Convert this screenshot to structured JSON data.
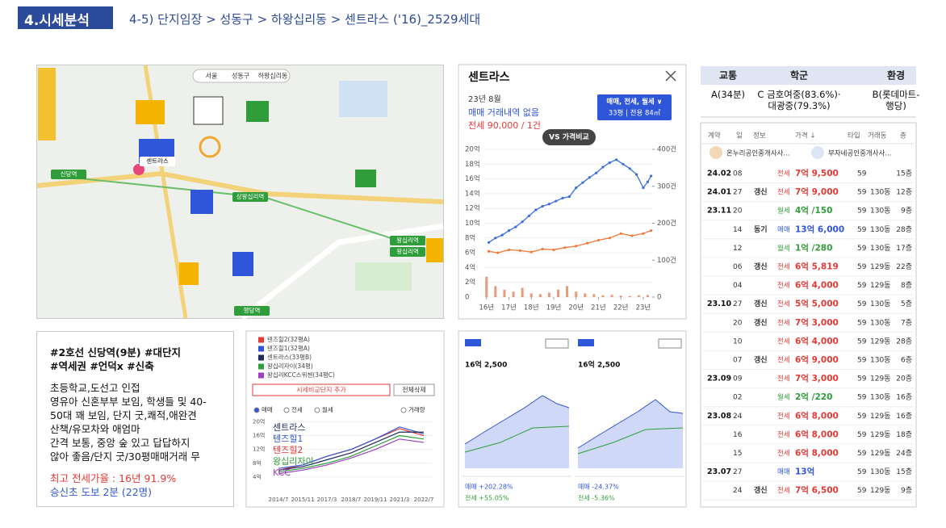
{
  "header": {
    "section": "4.시세분석",
    "breadcrumb": "4-5) 단지임장 > 성동구 > 하왕십리동 > 센트라스 ('16)_2529세대"
  },
  "map": {
    "filters": [
      "서울",
      "성동구",
      "하왕십리동"
    ],
    "labels": [
      "센트라스",
      "신당역",
      "상왕십리역",
      "왕십리역",
      "왕십리역",
      "행당역"
    ]
  },
  "price_panel": {
    "title": "센트라스",
    "month": "23년 8월",
    "sale_status": "매매 거래내역 없음",
    "jeonse_status": "전세 90,000 / 1건",
    "filter": "매매, 전세, 월세 ∨",
    "size": "33평 | 전용 84㎡",
    "compare": "VS 가격비교",
    "chart": {
      "type": "line",
      "sale": {
        "color": "#3b6fe0",
        "x": [
          16.1,
          16.4,
          16.7,
          17.0,
          17.3,
          17.6,
          17.9,
          18.2,
          18.5,
          18.8,
          19.1,
          19.4,
          19.7,
          20.0,
          20.3,
          20.6,
          20.9,
          21.2,
          21.5,
          21.8,
          22.1,
          22.4,
          22.7,
          23.0,
          23.2,
          23.35
        ],
        "values": [
          7.4,
          8.0,
          8.4,
          9.0,
          9.5,
          10.2,
          11.0,
          11.8,
          12.3,
          12.6,
          13.0,
          13.4,
          13.6,
          14.8,
          15.5,
          16.2,
          16.8,
          17.6,
          18.2,
          18.6,
          18.0,
          17.4,
          16.6,
          14.8,
          15.6,
          16.4
        ]
      },
      "jeonse": {
        "color": "#f07a3a",
        "x": [
          16.1,
          16.5,
          17.0,
          17.5,
          18.0,
          18.5,
          19.0,
          19.5,
          20.0,
          20.5,
          21.0,
          21.5,
          22.0,
          22.5,
          23.0,
          23.35
        ],
        "values": [
          6.2,
          6.0,
          6.4,
          6.3,
          6.1,
          6.5,
          6.4,
          6.7,
          6.9,
          7.3,
          7.7,
          8.0,
          8.6,
          8.3,
          8.6,
          9.0
        ]
      },
      "volume": {
        "color": "#e79a7a",
        "x": [
          16.0,
          16.4,
          16.8,
          17.2,
          17.6,
          18.0,
          18.4,
          18.8,
          19.2,
          19.6,
          20.0,
          20.4,
          20.8,
          21.2,
          21.6,
          22.0,
          22.4,
          22.8,
          23.2
        ],
        "values": [
          55,
          30,
          20,
          15,
          25,
          10,
          8,
          12,
          20,
          30,
          15,
          10,
          8,
          5,
          6,
          4,
          3,
          5,
          6
        ]
      },
      "xlim": [
        15.9,
        23.4
      ],
      "xticks": [
        {
          "value": 16,
          "label": "16년"
        },
        {
          "value": 17,
          "label": "17년"
        },
        {
          "value": 18,
          "label": "18년"
        },
        {
          "value": 19,
          "label": "19년"
        },
        {
          "value": 20,
          "label": "20년"
        },
        {
          "value": 21,
          "label": "21년"
        },
        {
          "value": 22,
          "label": "22년"
        },
        {
          "value": 23,
          "label": "23년"
        }
      ],
      "ylim": [
        0,
        20
      ],
      "yticks": [
        0,
        {
          "value": 2,
          "label": "2억"
        },
        {
          "value": 4,
          "label": "4억"
        },
        {
          "value": 6,
          "label": "6억"
        },
        {
          "value": 8,
          "label": "8억"
        },
        {
          "value": 10,
          "label": "10억"
        },
        {
          "value": 12,
          "label": "12억"
        },
        {
          "value": 14,
          "label": "14억"
        },
        {
          "value": 16,
          "label": "16억"
        },
        {
          "value": 18,
          "label": "18억"
        },
        {
          "value": 20,
          "label": "20억"
        }
      ],
      "y2lim": [
        0,
        400
      ],
      "y2ticks": [
        0,
        {
          "value": 100,
          "label": "100건"
        },
        {
          "value": 200,
          "label": "200건"
        },
        {
          "value": 300,
          "label": "300건"
        },
        {
          "value": 400,
          "label": "400건"
        }
      ]
    }
  },
  "school_table": {
    "headers": [
      "교통",
      "학군",
      "환경"
    ],
    "row": [
      "A(34분)",
      "C 금호여중(83.6%)· 대광중(79.3%)",
      "B(롯데마트-행당)"
    ]
  },
  "transactions": {
    "headers": [
      "계약",
      "일",
      "정보",
      "가격 ↓",
      "타입",
      "거래동",
      "층"
    ],
    "agents": [
      "온누리공인중개사사...",
      "부자네공인중개사사..."
    ],
    "kind_colors": {
      "전세": "#e53935",
      "월세": "#2e9d3a",
      "매매": "#2f56d8"
    },
    "rows": [
      [
        "24.02",
        "08",
        null,
        "전세",
        "7억 9,500",
        "59",
        null,
        "15층"
      ],
      [
        "24.01",
        "27",
        "갱신",
        "전세",
        "7억 9,000",
        "59",
        "130동",
        "12층"
      ],
      [
        "23.11",
        "20",
        null,
        "월세",
        "4억 /150",
        "59",
        "130동",
        "9층"
      ],
      [
        null,
        "14",
        "동기",
        "매매",
        "13억 6,000",
        "59",
        "130동",
        "28층"
      ],
      [
        null,
        "12",
        null,
        "월세",
        "1억 /280",
        "59",
        "130동",
        "17층"
      ],
      [
        null,
        "06",
        "갱신",
        "전세",
        "6억 5,819",
        "59",
        "129동",
        "22층"
      ],
      [
        null,
        "04",
        null,
        "전세",
        "6억 4,000",
        "59",
        "129동",
        "8층"
      ],
      [
        "23.10",
        "27",
        "갱신",
        "전세",
        "5억 5,000",
        "59",
        "130동",
        "5층"
      ],
      [
        null,
        "20",
        "갱신",
        "전세",
        "7억 3,000",
        "59",
        "130동",
        "7층"
      ],
      [
        null,
        "10",
        null,
        "전세",
        "6억 4,000",
        "59",
        "129동",
        "28층"
      ],
      [
        null,
        "07",
        "갱신",
        "전세",
        "6억 9,000",
        "59",
        "130동",
        "6층"
      ],
      [
        "23.09",
        "09",
        null,
        "전세",
        "7억 3,000",
        "59",
        "129동",
        "20층"
      ],
      [
        null,
        "02",
        null,
        "월세",
        "2억 /220",
        "59",
        "130동",
        "16층"
      ],
      [
        "23.08",
        "24",
        null,
        "전세",
        "6억 8,000",
        "59",
        "129동",
        "16층"
      ],
      [
        null,
        "16",
        null,
        "전세",
        "6억 8,000",
        "59",
        "129동",
        "18층"
      ],
      [
        null,
        "15",
        null,
        "전세",
        "6억 8,000",
        "59",
        "129동",
        "24층"
      ],
      [
        "23.07",
        "27",
        null,
        "매매",
        "13억",
        "59",
        "130동",
        "15층"
      ],
      [
        null,
        "24",
        "갱신",
        "전세",
        "7억 6,500",
        "59",
        "129동",
        "9층"
      ]
    ]
  },
  "notes": {
    "tags": [
      "#2호선 신당역(9분) #대단지",
      "#역세권 #언덕x #신축"
    ],
    "body": [
      "초등학교,도선고 인접",
      "영유아 신혼부부 보임, 학생들 및 40-",
      "50대 꽤 보임, 단지 굿,쾌적,애완견",
      "산책/유모차와 애엄마",
      "간격 보통, 중앙 숲 있고 답답하지",
      "않아 좋음/단지 굿/30평매매거래 무"
    ],
    "highlight": "최고 전세가율 : 16년 91.9%",
    "footer": "승신초 도보 2분 (22명)"
  },
  "compare_chart": {
    "type": "line",
    "legend": [
      {
        "name": "텐즈힐2(32평A)",
        "color": "#e53935"
      },
      {
        "name": "텐즈힐1(32평A)",
        "color": "#2f56d8"
      },
      {
        "name": "센트라스(33평B)",
        "color": "#1d2a5a"
      },
      {
        "name": "왕십리자이(34평)",
        "color": "#2e9d3a"
      },
      {
        "name": "왕십리KCC스위첸(34평C)",
        "color": "#9c3fc0"
      }
    ],
    "buttons": [
      "시세비교단지 추가",
      "전체삭제"
    ],
    "options": [
      "매매",
      "전세",
      "월세",
      "거래량"
    ],
    "categories": [
      "2014/7",
      "2015/11",
      "2017/3",
      "2018/7",
      "2019/11",
      "2021/3",
      "2022/7"
    ],
    "series": [
      {
        "values": [
          6.0,
          7.5,
          10.0,
          12.0,
          15.0,
          18.0,
          16.0
        ]
      },
      {
        "values": [
          6.5,
          7.5,
          10.0,
          12.0,
          15.0,
          18.5,
          16.5
        ]
      },
      {
        "values": [
          6.0,
          7.0,
          9.0,
          11.0,
          14.0,
          17.0,
          17.0
        ]
      },
      {
        "values": [
          5.5,
          6.5,
          8.0,
          10.0,
          13.0,
          16.0,
          15.0
        ]
      },
      {
        "values": [
          5.0,
          6.0,
          7.5,
          9.5,
          12.0,
          15.0,
          14.0
        ]
      }
    ],
    "overlay_labels": [
      "센트라스",
      "텐즈힐1",
      "텐즈힐2",
      "왕십리자이",
      "KCC"
    ],
    "ylim": [
      0,
      21.5
    ],
    "yticks": [
      {
        "value": 4,
        "label": "4억"
      },
      {
        "value": 8,
        "label": "8억"
      },
      {
        "value": 12,
        "label": "12억"
      },
      {
        "value": 16,
        "label": "16억"
      },
      {
        "value": 20,
        "label": "20억"
      }
    ]
  },
  "trend_panels": [
    {
      "price": "16억 2,500",
      "sale_change": "매매 +202.28%",
      "jeonse_change": "전세 +55.05%"
    },
    {
      "price": "16억 2,500",
      "sale_change": "매매 -24.37%",
      "jeonse_change": "전세 -5.36%"
    }
  ]
}
